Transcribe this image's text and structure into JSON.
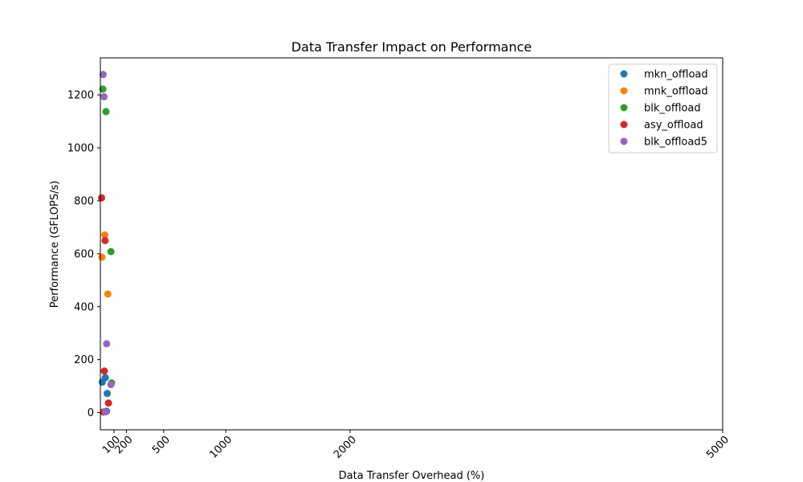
{
  "chart_data": {
    "type": "scatter",
    "title": "Data Transfer Impact on Performance",
    "xlabel": "Data Transfer Overhead (%)",
    "ylabel": "Performance (GFLOPS/s)",
    "xlim": [
      -10,
      5000
    ],
    "ylim": [
      -65,
      1340
    ],
    "x_ticks": [
      100,
      200,
      500,
      1000,
      2000,
      5000
    ],
    "y_ticks": [
      0,
      200,
      400,
      600,
      800,
      1000,
      1200
    ],
    "grid": false,
    "legend_position": "top-right",
    "series": [
      {
        "name": "mkn_offload",
        "color": "#1f77b4",
        "points": [
          [
            5,
            115
          ],
          [
            30,
            132
          ],
          [
            45,
            72
          ],
          [
            40,
            5
          ]
        ]
      },
      {
        "name": "mnk_offload",
        "color": "#ff7f0e",
        "points": [
          [
            3,
            587
          ],
          [
            25,
            671
          ],
          [
            50,
            448
          ]
        ]
      },
      {
        "name": "blk_offload",
        "color": "#2ca02c",
        "points": [
          [
            10,
            1222
          ],
          [
            35,
            1137
          ],
          [
            75,
            608
          ],
          [
            80,
            112
          ]
        ]
      },
      {
        "name": "asy_offload",
        "color": "#d62728",
        "points": [
          [
            0,
            811
          ],
          [
            28,
            650
          ],
          [
            22,
            157
          ],
          [
            55,
            36
          ],
          [
            15,
            2
          ]
        ]
      },
      {
        "name": "blk_offload5",
        "color": "#9467bd",
        "points": [
          [
            12,
            1277
          ],
          [
            20,
            1193
          ],
          [
            40,
            260
          ],
          [
            75,
            106
          ],
          [
            32,
            3
          ]
        ]
      }
    ]
  }
}
